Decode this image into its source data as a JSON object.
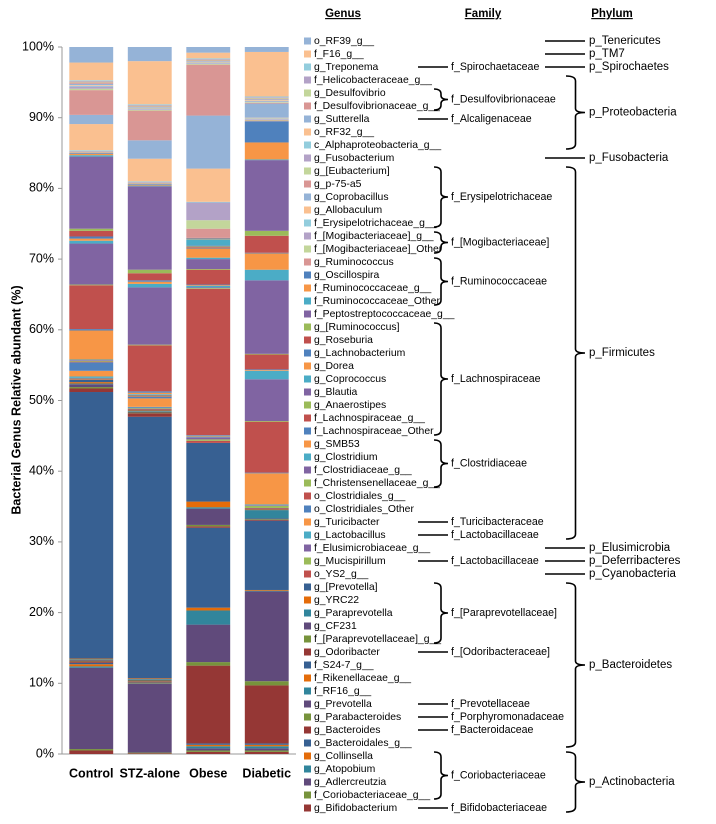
{
  "chart_data": {
    "type": "bar",
    "stacked": true,
    "ylabel": "Bacterial Genus Relative abundant (%)",
    "categories": [
      "Control",
      "STZ-alone",
      "Obese",
      "Diabetic"
    ],
    "ylim": [
      0,
      100
    ],
    "yticks": [
      {
        "value": 0,
        "label": "0%"
      },
      {
        "value": 10,
        "label": "10%"
      },
      {
        "value": 20,
        "label": "20%"
      },
      {
        "value": 30,
        "label": "30%"
      },
      {
        "value": 40,
        "label": "40%"
      },
      {
        "value": 50,
        "label": "50%"
      },
      {
        "value": 60,
        "label": "60%"
      },
      {
        "value": 70,
        "label": "70%"
      },
      {
        "value": 80,
        "label": "80%"
      },
      {
        "value": 90,
        "label": "90%"
      },
      {
        "value": 100,
        "label": "100%"
      }
    ],
    "column_headers": {
      "genus": "Genus",
      "family": "Family",
      "phylum": "Phylum"
    },
    "family_labels": [
      "f_Spirochaetaceae",
      "f_Desulfovibrionaceae",
      "f_Alcaligenaceae",
      "f_Erysipelotrichaceae",
      "f_[Mogibacteriaceae]",
      "f_Ruminococcaceae",
      "f_Lachnospiraceae",
      "f_Clostridiaceae",
      "f_Turicibacteraceae",
      "f_Lactobacillaceae",
      "f_Lactobacillaceae",
      "f_[Paraprevotellaceae]",
      "f_[Odoribacteraceae]",
      "f_Prevotellaceae",
      "f_Porphyromonadaceae",
      "f_Bacteroidaceae",
      "f_Coriobacteriaceae",
      "f_Bifidobacteriaceae"
    ],
    "phylum_labels": [
      "p_Tenericutes",
      "p_TM7",
      "p_Spirochaetes",
      "p_Proteobacteria",
      "p_Fusobacteria",
      "p_Firmicutes",
      "p_Elusimicrobia",
      "p_Deferribacteres",
      "p_Cyanobacteria",
      "p_Bacteroidetes",
      "p_Actinobacteria"
    ],
    "series": [
      {
        "name": "g_Bifidobacterium",
        "color": "#953735",
        "values": [
          0.5,
          0.1,
          0.3,
          0.3
        ]
      },
      {
        "name": "f_Coriobacteriaceae_g__",
        "color": "#77933C",
        "values": [
          0.2,
          0.1,
          0.2,
          0.2
        ]
      },
      {
        "name": "g_Adlercreutzia",
        "color": "#604A7B",
        "values": [
          11.5,
          9.7,
          0.3,
          0.3
        ]
      },
      {
        "name": "g_Atopobium",
        "color": "#31859C",
        "values": [
          0.2,
          0.1,
          0.3,
          0.3
        ]
      },
      {
        "name": "g_Collinsella",
        "color": "#E46C0A",
        "values": [
          0.3,
          0.1,
          0.2,
          0.2
        ]
      },
      {
        "name": "o_Bacteroidales_g__",
        "color": "#376092",
        "values": [
          0.2,
          0.1,
          0.2,
          0.2
        ]
      },
      {
        "name": "g_Bacteroides",
        "color": "#953735",
        "values": [
          0.2,
          0.1,
          11.0,
          8.2
        ]
      },
      {
        "name": "g_Parabacteroides",
        "color": "#77933C",
        "values": [
          0.1,
          0.1,
          0.5,
          0.6
        ]
      },
      {
        "name": "g_Prevotella",
        "color": "#604A7B",
        "values": [
          0.1,
          0.1,
          5.3,
          12.7
        ]
      },
      {
        "name": "f_RF16_g__",
        "color": "#31859C",
        "values": [
          0.1,
          0.1,
          2.0,
          0.1
        ]
      },
      {
        "name": "f_Rikenellaceae_g__",
        "color": "#E46C0A",
        "values": [
          0.1,
          0.1,
          0.4,
          0.1
        ]
      },
      {
        "name": "f_S24-7_g__",
        "color": "#376092",
        "values": [
          37.7,
          37.0,
          11.3,
          9.8
        ]
      },
      {
        "name": "g_Odoribacter",
        "color": "#953735",
        "values": [
          0.5,
          0.5,
          0.2,
          0.1
        ]
      },
      {
        "name": "f_[Paraprevotellaceae]_g__",
        "color": "#77933C",
        "values": [
          0.2,
          0.1,
          0.2,
          0.1
        ]
      },
      {
        "name": "g_CF231",
        "color": "#604A7B",
        "values": [
          0.4,
          0.1,
          2.3,
          0.1
        ]
      },
      {
        "name": "g_Paraprevotella",
        "color": "#31859C",
        "values": [
          0.1,
          0.1,
          0.2,
          1.2
        ]
      },
      {
        "name": "g_YRC22",
        "color": "#E46C0A",
        "values": [
          0.2,
          0.1,
          0.8,
          0.1
        ]
      },
      {
        "name": "g_[Prevotella]",
        "color": "#376092",
        "values": [
          0.3,
          0.1,
          8.3,
          0.1
        ]
      },
      {
        "name": "o_YS2_g__",
        "color": "#C0504D",
        "values": [
          0.1,
          0.1,
          0.3,
          0.1
        ]
      },
      {
        "name": "g_Mucispirillum",
        "color": "#9BBB59",
        "values": [
          0.1,
          0.1,
          0.2,
          0.3
        ]
      },
      {
        "name": "f_Elusimicrobiaceae_g__",
        "color": "#8064A2",
        "values": [
          0.1,
          0.1,
          0.3,
          0.1
        ]
      },
      {
        "name": "g_Lactobacillus",
        "color": "#4BACC6",
        "values": [
          0.2,
          0.1,
          0.1,
          0.1
        ]
      },
      {
        "name": "g_Turicibacter",
        "color": "#F79646",
        "values": [
          0.8,
          1.2,
          0.1,
          4.4
        ]
      },
      {
        "name": "o_Clostridiales_Other",
        "color": "#4F81BD",
        "values": [
          1.2,
          0.2,
          0.1,
          0.1
        ]
      },
      {
        "name": "o_Clostridiales_g__",
        "color": "#C0504D",
        "values": [
          0.1,
          0.1,
          20.7,
          7.2
        ]
      },
      {
        "name": "f_Christensenellaceae_g__",
        "color": "#9BBB59",
        "values": [
          0.1,
          0.1,
          0.1,
          0.1
        ]
      },
      {
        "name": "f_Clostridiaceae_g__",
        "color": "#8064A2",
        "values": [
          0.1,
          0.1,
          0.1,
          5.9
        ]
      },
      {
        "name": "g_Clostridium",
        "color": "#4BACC6",
        "values": [
          0.1,
          0.1,
          0.2,
          1.2
        ]
      },
      {
        "name": "g_SMB53",
        "color": "#F79646",
        "values": [
          4.1,
          0.2,
          0.1,
          0.1
        ]
      },
      {
        "name": "f_Lachnospiraceae_Other",
        "color": "#4F81BD",
        "values": [
          0.2,
          0.2,
          0.1,
          0.1
        ]
      },
      {
        "name": "f_Lachnospiraceae_g__",
        "color": "#C0504D",
        "values": [
          6.2,
          6.5,
          2.1,
          2.1
        ]
      },
      {
        "name": "g_Anaerostipes",
        "color": "#9BBB59",
        "values": [
          0.1,
          0.1,
          0.1,
          0.1
        ]
      },
      {
        "name": "g_Blautia",
        "color": "#8064A2",
        "values": [
          5.8,
          8.1,
          1.4,
          10.4
        ]
      },
      {
        "name": "g_Coprococcus",
        "color": "#4BACC6",
        "values": [
          0.4,
          0.5,
          0.2,
          1.5
        ]
      },
      {
        "name": "g_Dorea",
        "color": "#F79646",
        "values": [
          0.3,
          0.3,
          1.3,
          2.3
        ]
      },
      {
        "name": "g_Lachnobacterium",
        "color": "#4F81BD",
        "values": [
          0.3,
          0.2,
          0.1,
          0.1
        ]
      },
      {
        "name": "g_Roseburia",
        "color": "#C0504D",
        "values": [
          0.8,
          1.0,
          0.1,
          2.4
        ]
      },
      {
        "name": "g_[Ruminococcus]",
        "color": "#9BBB59",
        "values": [
          0.3,
          0.5,
          0.1,
          0.7
        ]
      },
      {
        "name": "f_Peptostreptococcaceae_g__",
        "color": "#8064A2",
        "values": [
          10.2,
          11.8,
          0.1,
          10.0
        ]
      },
      {
        "name": "f_Ruminococcaceae_Other",
        "color": "#4BACC6",
        "values": [
          0.2,
          0.1,
          0.9,
          0.1
        ]
      },
      {
        "name": "f_Ruminococcaceae_g__",
        "color": "#F79646",
        "values": [
          0.2,
          0.1,
          0.1,
          2.4
        ]
      },
      {
        "name": "g_Oscillospira",
        "color": "#4F81BD",
        "values": [
          0.1,
          0.1,
          0.1,
          3.0
        ]
      },
      {
        "name": "g_Ruminococcus",
        "color": "#D99694",
        "values": [
          0.1,
          0.1,
          1.3,
          0.1
        ]
      },
      {
        "name": "f_[Mogibacteriaceae]_Other",
        "color": "#C3D69B",
        "values": [
          0.1,
          0.1,
          1.2,
          0.1
        ]
      },
      {
        "name": "f_[Mogibacteriaceae]_g__",
        "color": "#B3A2C7",
        "values": [
          0.1,
          0.1,
          2.5,
          0.1
        ]
      },
      {
        "name": "f_Erysipelotrichaceae_g__",
        "color": "#93CDDD",
        "values": [
          0.1,
          0.1,
          0.1,
          0.1
        ]
      },
      {
        "name": "g_Allobaculum",
        "color": "#FAC090",
        "values": [
          3.7,
          3.2,
          4.7,
          0.1
        ]
      },
      {
        "name": "g_Coprobacillus",
        "color": "#95B3D7",
        "values": [
          1.3,
          2.6,
          7.5,
          2.0
        ]
      },
      {
        "name": "g_p-75-a5",
        "color": "#D99694",
        "values": [
          3.5,
          4.2,
          7.2,
          0.1
        ]
      },
      {
        "name": "g_[Eubacterium]",
        "color": "#C3D69B",
        "values": [
          0.2,
          0.1,
          0.1,
          0.1
        ]
      },
      {
        "name": "g_Fusobacterium",
        "color": "#B3A2C7",
        "values": [
          0.3,
          0.1,
          0.1,
          0.1
        ]
      },
      {
        "name": "c_Alphaproteobacteria_g__",
        "color": "#93CDDD",
        "values": [
          0.1,
          0.1,
          0.1,
          0.1
        ]
      },
      {
        "name": "o_RF32_g__",
        "color": "#FAC090",
        "values": [
          0.1,
          0.1,
          0.1,
          0.1
        ]
      },
      {
        "name": "g_Sutterella",
        "color": "#95B3D7",
        "values": [
          0.2,
          0.1,
          0.1,
          0.1
        ]
      },
      {
        "name": "f_Desulfovibrionaceae_g__",
        "color": "#D99694",
        "values": [
          0.2,
          0.1,
          0.1,
          0.1
        ]
      },
      {
        "name": "g_Desulfovibrio",
        "color": "#C3D69B",
        "values": [
          0.1,
          0.1,
          0.1,
          0.1
        ]
      },
      {
        "name": "f_Helicobacteraceae_g__",
        "color": "#B3A2C7",
        "values": [
          0.1,
          0.1,
          0.1,
          0.1
        ]
      },
      {
        "name": "g_Treponema",
        "color": "#93CDDD",
        "values": [
          0.1,
          0.1,
          0.1,
          0.1
        ]
      },
      {
        "name": "f_F16_g__",
        "color": "#FAC090",
        "values": [
          2.5,
          6.1,
          0.8,
          6.3
        ]
      },
      {
        "name": "o_RF39_g__",
        "color": "#95B3D7",
        "values": [
          2.2,
          2.0,
          0.8,
          0.7
        ]
      }
    ]
  }
}
